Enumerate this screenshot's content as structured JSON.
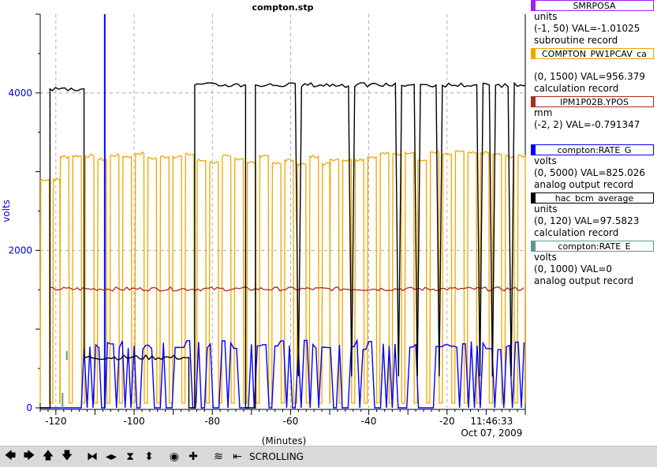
{
  "chart_data": {
    "type": "line",
    "title": "compton.stp",
    "xlabel": "(Minutes)",
    "ylabel": "volts",
    "xlim": [
      -124,
      0
    ],
    "ylim": [
      0,
      5000
    ],
    "x_ticks": [
      -120,
      -100,
      -80,
      -60,
      -40,
      -20
    ],
    "x_tick_labels": [
      "-120",
      "-100",
      "-80",
      "-60",
      "-40",
      "-20"
    ],
    "y_ticks": [
      0,
      2000,
      4000
    ],
    "y_tick_labels": [
      "0",
      "2000",
      "4000"
    ],
    "time_label": "11:46:33",
    "date_label": "Oct 07, 2009",
    "grid": true,
    "series": [
      {
        "name": "hac_bcm_average",
        "color": "#000000",
        "kind": "bcm",
        "segments": [
          [
            -124,
            -121.5,
            0
          ],
          [
            -121.5,
            -112.8,
            4050
          ],
          [
            -112.8,
            -86,
            640
          ],
          [
            -86,
            -84.5,
            0
          ],
          [
            -84.5,
            -71.5,
            4100
          ],
          [
            -71.5,
            -69,
            0
          ],
          [
            -69,
            0,
            4100
          ]
        ]
      },
      {
        "name": "COMPTON_PW1PCAV_ca",
        "color": "#f0a500",
        "kind": "cavity",
        "regions": [
          [
            -124,
            -119,
            2900
          ],
          [
            -119,
            -84,
            3200
          ],
          [
            -84,
            -50,
            3150
          ],
          [
            -50,
            0,
            3200
          ]
        ],
        "period": 3.2
      },
      {
        "name": "IPM1P02B.YPOS",
        "color": "#a82d1e",
        "kind": "flat",
        "y": 1510
      },
      {
        "name": "compton:RATE_G",
        "color": "#0000ff",
        "kind": "rate",
        "y": 800,
        "cursor_x": -107.5
      },
      {
        "name": "compton:RATE_E",
        "color": "#5a9a8c",
        "kind": "spike",
        "y": 380
      }
    ]
  },
  "legend": [
    {
      "label": "SMRPOSA",
      "color": "#a020f0",
      "units": "units",
      "range_val": "(-1, 50)  VAL=-1.01025",
      "record": "subroutine record"
    },
    {
      "label": "COMPTON_PW1PCAV_ca",
      "color": "#f0a500",
      "units": "",
      "range_val": "(0, 1500)  VAL=956.379",
      "record": "calculation record"
    },
    {
      "label": "IPM1P02B.YPOS",
      "color": "#a82d1e",
      "units": "mm",
      "range_val": "(-2, 2)  VAL=-0.791347",
      "record": ""
    },
    {
      "label": "compton:RATE_G",
      "color": "#0000ff",
      "units": "volts",
      "range_val": "(0, 5000)  VAL=825.026",
      "record": "analog output record"
    },
    {
      "label": "hac_bcm_average",
      "color": "#000000",
      "units": "units",
      "range_val": "(0, 120)  VAL=97.5823",
      "record": "calculation record"
    },
    {
      "label": "compton:RATE_E",
      "color": "#5a9a8c",
      "units": "volts",
      "range_val": "(0, 1000)  VAL=0",
      "record": "analog output record"
    }
  ],
  "toolbar": {
    "buttons": [
      {
        "name": "scroll-left-button",
        "glyph": "🡄"
      },
      {
        "name": "scroll-right-button",
        "glyph": "🡆"
      },
      {
        "name": "scroll-up-button",
        "glyph": "🡅"
      },
      {
        "name": "scroll-down-button",
        "glyph": "🡇"
      },
      {
        "name": "zoom-in-horizontal-button",
        "glyph": "⧓"
      },
      {
        "name": "zoom-out-horizontal-button",
        "glyph": "◂▸"
      },
      {
        "name": "zoom-in-vertical-button",
        "glyph": "⧗"
      },
      {
        "name": "zoom-out-vertical-button",
        "glyph": "⬍"
      },
      {
        "name": "target-button",
        "glyph": "◉"
      },
      {
        "name": "add-button",
        "glyph": "✚"
      },
      {
        "name": "wave-button",
        "glyph": "≋"
      },
      {
        "name": "jump-button",
        "glyph": "⇤"
      }
    ],
    "status": "SCROLLING"
  }
}
